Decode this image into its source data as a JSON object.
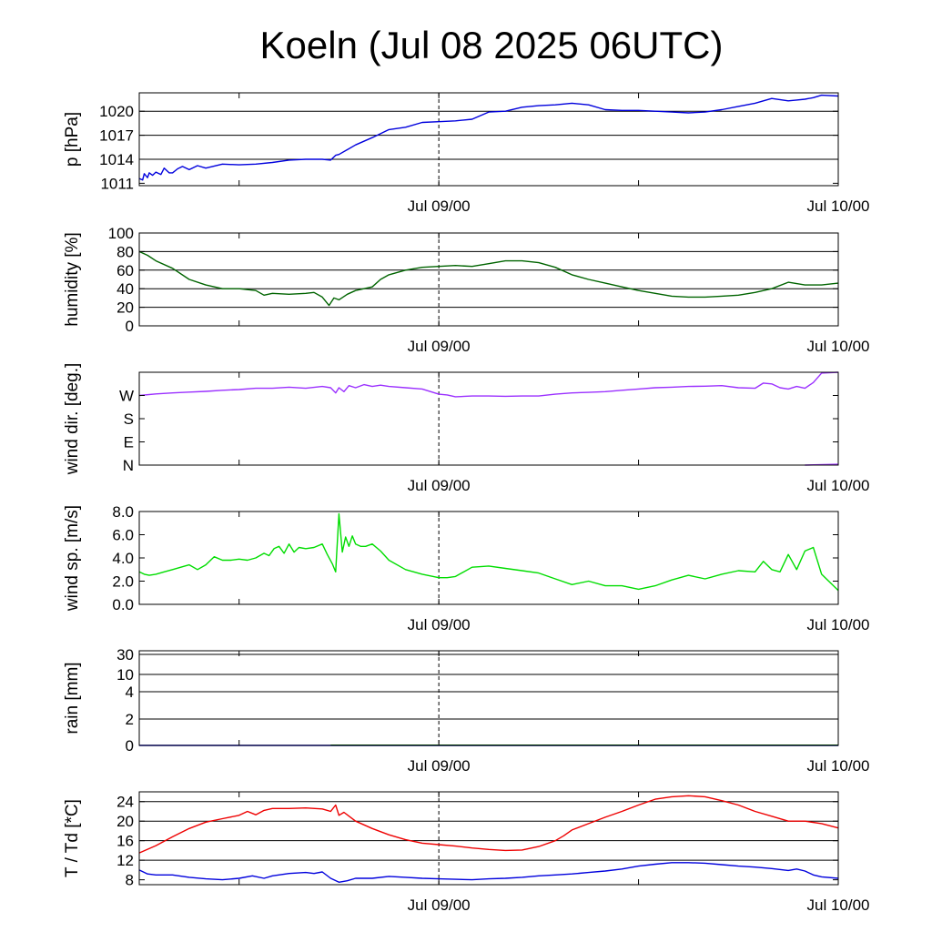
{
  "title": "Koeln (Jul 08 2025 06UTC)",
  "x_axis": {
    "unit": "hours since Jul 08 2025 06UTC",
    "range": [
      0,
      42
    ],
    "tick_hours": [
      6,
      18,
      30,
      42
    ],
    "labeled_ticks": [
      {
        "hour": 18,
        "label": "Jul 09/00"
      },
      {
        "hour": 42,
        "label": "Jul 10/00"
      }
    ],
    "marker_hour": 18
  },
  "chart_data": [
    {
      "type": "line",
      "id": "pressure",
      "ylabel": "p [hPa]",
      "ylim": [
        1010.7,
        1022.3
      ],
      "yticks": [
        {
          "v": 1011,
          "label": "1011"
        },
        {
          "v": 1014,
          "label": "1014"
        },
        {
          "v": 1017,
          "label": "1017"
        },
        {
          "v": 1020,
          "label": "1020"
        }
      ],
      "gridlines": [
        1014,
        1017,
        1020
      ],
      "series": [
        {
          "color": "#0000dd",
          "x": [
            0,
            0.2,
            0.3,
            0.5,
            0.6,
            0.8,
            1.0,
            1.3,
            1.5,
            1.8,
            2.0,
            2.3,
            2.6,
            3.0,
            3.5,
            4.0,
            5.0,
            6.0,
            7.0,
            8.0,
            9.0,
            10.0,
            11.0,
            11.5,
            11.8,
            12.0,
            13.0,
            14.0,
            15.0,
            16.0,
            17.0,
            18.0,
            19.0,
            20.0,
            21.0,
            22.0,
            23.0,
            24.0,
            25.0,
            26.0,
            27.0,
            28.0,
            29.0,
            30.0,
            31.0,
            32.0,
            33.0,
            34.0,
            35.0,
            36.0,
            37.0,
            38.0,
            39.0,
            39.5,
            40.0,
            40.5,
            41.0,
            42.0
          ],
          "y": [
            1011.6,
            1011.4,
            1012.2,
            1011.7,
            1012.3,
            1012.0,
            1012.4,
            1012.1,
            1012.9,
            1012.3,
            1012.3,
            1012.8,
            1013.1,
            1012.7,
            1013.2,
            1012.9,
            1013.4,
            1013.3,
            1013.4,
            1013.6,
            1013.9,
            1014.0,
            1014.0,
            1013.9,
            1014.5,
            1014.6,
            1015.8,
            1016.7,
            1017.7,
            1018.0,
            1018.6,
            1018.7,
            1018.8,
            1019.0,
            1019.9,
            1020.0,
            1020.5,
            1020.7,
            1020.8,
            1021.0,
            1020.8,
            1020.2,
            1020.1,
            1020.1,
            1020.0,
            1019.9,
            1019.8,
            1019.9,
            1020.2,
            1020.6,
            1021.0,
            1021.6,
            1021.3,
            1021.4,
            1021.5,
            1021.7,
            1022.0,
            1021.9
          ]
        }
      ]
    },
    {
      "type": "line",
      "id": "humidity",
      "ylabel": "humidity [%]",
      "ylim": [
        0,
        100
      ],
      "yticks": [
        {
          "v": 0,
          "label": "0"
        },
        {
          "v": 20,
          "label": "20"
        },
        {
          "v": 40,
          "label": "40"
        },
        {
          "v": 60,
          "label": "60"
        },
        {
          "v": 80,
          "label": "80"
        },
        {
          "v": 100,
          "label": "100"
        }
      ],
      "gridlines": [
        20,
        40,
        60,
        80
      ],
      "series": [
        {
          "color": "#006400",
          "x": [
            0,
            0.5,
            1.0,
            2.0,
            3.0,
            4.0,
            5.0,
            6.0,
            7.0,
            7.5,
            8.0,
            9.0,
            10.0,
            10.5,
            11.0,
            11.4,
            11.7,
            12.0,
            12.5,
            13.0,
            14.0,
            14.5,
            15.0,
            16.0,
            17.0,
            18.0,
            19.0,
            20.0,
            21.0,
            22.0,
            23.0,
            24.0,
            25.0,
            26.0,
            27.0,
            28.0,
            29.0,
            30.0,
            31.0,
            32.0,
            33.0,
            34.0,
            35.0,
            36.0,
            37.0,
            38.0,
            39.0,
            40.0,
            41.0,
            42.0
          ],
          "y": [
            80,
            76,
            70,
            62,
            50,
            44,
            40,
            40,
            38,
            33,
            35,
            34,
            35,
            36,
            31,
            22,
            30,
            28,
            34,
            38,
            42,
            50,
            55,
            60,
            63,
            64,
            65,
            64,
            67,
            70,
            70,
            68,
            63,
            55,
            50,
            46,
            42,
            38,
            35,
            32,
            31,
            31,
            32,
            33,
            36,
            40,
            47,
            44,
            44,
            46
          ]
        }
      ]
    },
    {
      "type": "line",
      "id": "wind_direction",
      "ylabel": "wind dir. [deg.]",
      "ylim": [
        0,
        360
      ],
      "yticks": [
        {
          "v": 0,
          "label": "N"
        },
        {
          "v": 90,
          "label": "E"
        },
        {
          "v": 180,
          "label": "S"
        },
        {
          "v": 270,
          "label": "W"
        }
      ],
      "gridlines": [],
      "series": [
        {
          "color": "#9b30ff",
          "x": [
            0,
            1.0,
            2.0,
            3.0,
            4.0,
            5.0,
            6.0,
            7.0,
            8.0,
            9.0,
            10.0,
            11.0,
            11.5,
            11.8,
            12.0,
            12.3,
            12.6,
            13.0,
            13.5,
            14.0,
            14.5,
            15.0,
            16.0,
            17.0,
            18.0,
            18.5,
            19.0,
            20.0,
            21.0,
            22.0,
            23.0,
            24.0,
            25.0,
            26.0,
            27.0,
            28.0,
            29.0,
            30.0,
            31.0,
            32.0,
            33.0,
            34.0,
            35.0,
            36.0,
            37.0,
            37.5,
            38.0,
            38.5,
            39.0,
            39.5,
            40.0,
            40.5,
            41.0,
            42.0
          ],
          "y": [
            270,
            276,
            280,
            283,
            286,
            290,
            293,
            298,
            298,
            302,
            298,
            305,
            300,
            280,
            300,
            285,
            308,
            300,
            312,
            305,
            310,
            305,
            300,
            295,
            275,
            272,
            265,
            268,
            268,
            267,
            268,
            268,
            275,
            280,
            282,
            285,
            290,
            295,
            300,
            302,
            305,
            306,
            308,
            300,
            298,
            318,
            315,
            300,
            295,
            305,
            298,
            320,
            357,
            360
          ]
        },
        {
          "color": "#9b30ff",
          "x": [
            40.0,
            42.0
          ],
          "y": [
            0,
            3
          ]
        }
      ]
    },
    {
      "type": "line",
      "id": "wind_speed",
      "ylabel": "wind sp. [m/s]",
      "ylim": [
        0,
        8
      ],
      "yticks": [
        {
          "v": 0,
          "label": "0.0"
        },
        {
          "v": 2,
          "label": "2.0"
        },
        {
          "v": 4,
          "label": "4.0"
        },
        {
          "v": 6,
          "label": "6.0"
        },
        {
          "v": 8,
          "label": "8.0"
        }
      ],
      "gridlines": [],
      "series": [
        {
          "color": "#00dd00",
          "x": [
            0,
            0.3,
            0.6,
            1.0,
            1.5,
            2.0,
            2.5,
            3.0,
            3.5,
            4.0,
            4.5,
            5.0,
            5.5,
            6.0,
            6.5,
            7.0,
            7.5,
            7.8,
            8.1,
            8.4,
            8.7,
            9.0,
            9.3,
            9.6,
            10.0,
            10.5,
            11.0,
            11.3,
            11.6,
            11.8,
            12.0,
            12.2,
            12.4,
            12.6,
            12.8,
            13.0,
            13.3,
            13.6,
            14.0,
            14.5,
            15.0,
            16.0,
            17.0,
            18.0,
            18.5,
            19.0,
            20.0,
            21.0,
            22.0,
            23.0,
            24.0,
            25.0,
            26.0,
            27.0,
            28.0,
            29.0,
            30.0,
            31.0,
            32.0,
            33.0,
            34.0,
            35.0,
            36.0,
            37.0,
            37.5,
            38.0,
            38.5,
            39.0,
            39.5,
            40.0,
            40.5,
            41.0,
            42.0
          ],
          "y": [
            2.8,
            2.6,
            2.5,
            2.6,
            2.8,
            3.0,
            3.2,
            3.4,
            3.0,
            3.4,
            4.1,
            3.8,
            3.8,
            3.9,
            3.8,
            4.0,
            4.4,
            4.2,
            4.8,
            5.0,
            4.4,
            5.2,
            4.5,
            4.9,
            4.8,
            4.9,
            5.2,
            4.3,
            3.5,
            2.8,
            7.8,
            4.5,
            5.8,
            5.0,
            5.9,
            5.2,
            5.0,
            5.0,
            5.2,
            4.6,
            3.8,
            3.0,
            2.6,
            2.3,
            2.3,
            2.4,
            3.2,
            3.3,
            3.1,
            2.9,
            2.7,
            2.2,
            1.7,
            2.0,
            1.6,
            1.6,
            1.3,
            1.6,
            2.1,
            2.5,
            2.2,
            2.6,
            2.9,
            2.8,
            3.7,
            3.0,
            2.8,
            4.3,
            3.0,
            4.6,
            4.9,
            2.6,
            1.2
          ]
        }
      ]
    },
    {
      "type": "line",
      "id": "rain",
      "ylabel": "rain [mm]",
      "yticks": [
        {
          "v": 0,
          "label": "0"
        },
        {
          "v": 2,
          "label": "2"
        },
        {
          "v": 4,
          "label": "4"
        },
        {
          "v": 10,
          "label": "10"
        },
        {
          "v": 30,
          "label": "30"
        }
      ],
      "gridlines": [
        2,
        4,
        10,
        30
      ],
      "series": [
        {
          "color": "#0000dd",
          "x": [
            0,
            42
          ],
          "y": [
            0,
            0
          ]
        },
        {
          "color": "#006400",
          "x": [
            11.5,
            42
          ],
          "y": [
            0.02,
            0.02
          ]
        }
      ]
    },
    {
      "type": "line",
      "id": "temperature_dewpoint",
      "ylabel": "T / Td [*C]",
      "ylim": [
        7,
        26
      ],
      "yticks": [
        {
          "v": 8,
          "label": "8"
        },
        {
          "v": 12,
          "label": "12"
        },
        {
          "v": 16,
          "label": "16"
        },
        {
          "v": 20,
          "label": "20"
        },
        {
          "v": 24,
          "label": "24"
        }
      ],
      "gridlines": [
        12,
        16,
        20,
        24
      ],
      "series": [
        {
          "color": "#ee0000",
          "x": [
            0,
            1.0,
            2.0,
            3.0,
            4.0,
            5.0,
            6.0,
            6.5,
            7.0,
            7.5,
            8.0,
            9.0,
            10.0,
            11.0,
            11.5,
            11.8,
            12.0,
            12.3,
            13.0,
            14.0,
            15.0,
            16.0,
            17.0,
            18.0,
            19.0,
            20.0,
            21.0,
            22.0,
            23.0,
            24.0,
            25.0,
            25.5,
            26.0,
            27.0,
            28.0,
            29.0,
            30.0,
            31.0,
            32.0,
            33.0,
            34.0,
            35.0,
            36.0,
            37.0,
            38.0,
            39.0,
            40.0,
            41.0,
            42.0
          ],
          "y": [
            13.5,
            15.0,
            16.8,
            18.5,
            19.8,
            20.5,
            21.2,
            22.0,
            21.3,
            22.2,
            22.6,
            22.6,
            22.7,
            22.5,
            22.0,
            23.3,
            21.2,
            21.8,
            20.0,
            18.5,
            17.2,
            16.2,
            15.5,
            15.2,
            14.9,
            14.5,
            14.2,
            14.0,
            14.1,
            14.8,
            16.0,
            17.0,
            18.2,
            19.5,
            20.8,
            22.0,
            23.3,
            24.5,
            25.0,
            25.2,
            25.0,
            24.2,
            23.3,
            22.0,
            21.0,
            20.0,
            20.0,
            19.5,
            18.6
          ]
        },
        {
          "color": "#0000dd",
          "x": [
            0,
            0.5,
            1.0,
            2.0,
            3.0,
            4.0,
            5.0,
            6.0,
            6.8,
            7.5,
            8.0,
            9.0,
            10.0,
            10.5,
            11.0,
            11.5,
            12.0,
            12.5,
            13.0,
            14.0,
            15.0,
            16.0,
            17.0,
            18.0,
            19.0,
            20.0,
            21.0,
            22.0,
            23.0,
            24.0,
            25.0,
            26.0,
            27.0,
            28.0,
            29.0,
            30.0,
            31.0,
            32.0,
            33.0,
            34.0,
            35.0,
            36.0,
            37.0,
            38.0,
            39.0,
            39.5,
            40.0,
            40.5,
            41.0,
            42.0
          ],
          "y": [
            10.0,
            9.2,
            9.0,
            9.0,
            8.5,
            8.2,
            8.0,
            8.3,
            8.8,
            8.3,
            8.8,
            9.3,
            9.5,
            9.3,
            9.6,
            8.3,
            7.5,
            7.8,
            8.3,
            8.3,
            8.7,
            8.5,
            8.3,
            8.2,
            8.1,
            8.0,
            8.2,
            8.3,
            8.5,
            8.8,
            9.0,
            9.2,
            9.5,
            9.8,
            10.2,
            10.8,
            11.2,
            11.5,
            11.5,
            11.4,
            11.1,
            10.8,
            10.6,
            10.3,
            9.9,
            10.2,
            9.8,
            9.0,
            8.6,
            8.3
          ]
        }
      ]
    }
  ]
}
